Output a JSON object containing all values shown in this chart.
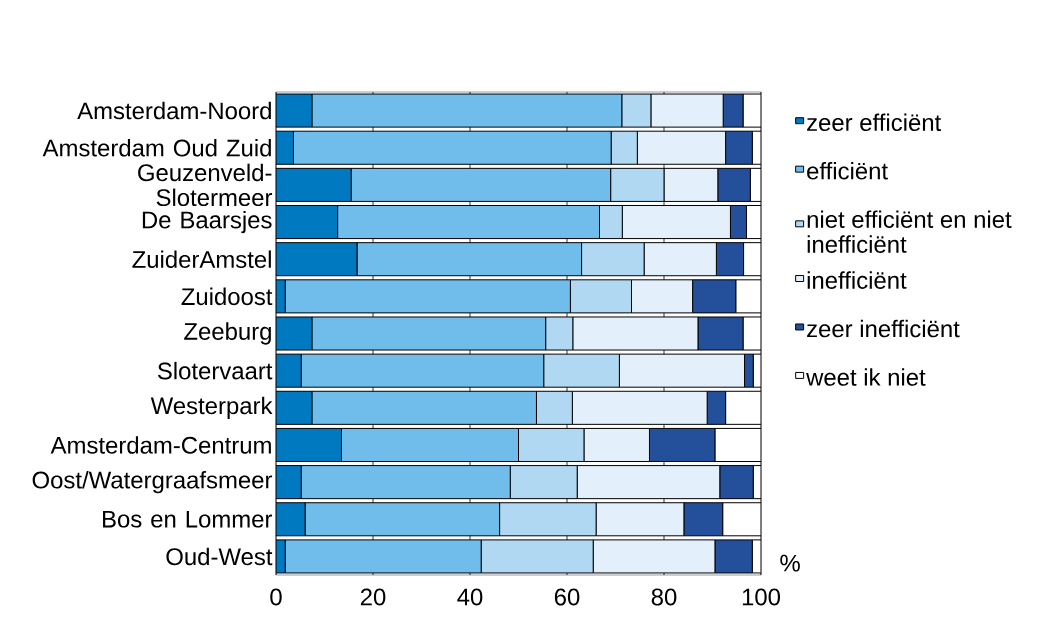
{
  "chart_data": {
    "type": "bar",
    "orientation": "horizontal",
    "stacked": true,
    "categories": [
      "Amsterdam-Noord",
      "Amsterdam Oud Zuid",
      "Geuzenveld-Slotermeer",
      "De Baarsjes",
      "ZuiderAmstel",
      "Zuidoost",
      "Zeeburg",
      "Slotervaart",
      "Westerpark",
      "Amsterdam-Centrum",
      "Oost/Watergraafsmeer",
      "Bos en Lommer",
      "Oud-West"
    ],
    "series": [
      {
        "name": "zeer efficiënt",
        "color": "#0079c1",
        "values": [
          7.4,
          3.6,
          15.5,
          12.7,
          16.7,
          1.9,
          7.4,
          5.2,
          7.4,
          13.5,
          5.2,
          6.0,
          1.9
        ]
      },
      {
        "name": "efficiënt",
        "color": "#70bdec",
        "values": [
          63.9,
          65.5,
          53.5,
          54.0,
          46.3,
          58.8,
          48.2,
          50.0,
          46.3,
          36.5,
          43.1,
          40.1,
          40.4
        ]
      },
      {
        "name": "niet efficiënt en niet inefficiënt",
        "color": "#b1d8f3",
        "values": [
          6.0,
          5.4,
          11.0,
          4.7,
          12.9,
          12.6,
          5.6,
          15.6,
          7.4,
          13.5,
          13.8,
          19.9,
          23.1
        ]
      },
      {
        "name": "inefficiënt",
        "color": "#e3f0fb",
        "values": [
          14.9,
          18.2,
          11.1,
          22.3,
          14.9,
          12.6,
          25.8,
          25.8,
          27.8,
          13.5,
          29.4,
          18.1,
          25.1
        ]
      },
      {
        "name": "zeer inefficiënt",
        "color": "#24509b",
        "values": [
          4.1,
          5.5,
          6.7,
          3.3,
          5.6,
          8.9,
          9.3,
          1.8,
          3.8,
          13.5,
          6.9,
          8.0,
          7.7
        ]
      },
      {
        "name": "weet ik niet",
        "color": "#ffffff",
        "values": [
          3.7,
          1.8,
          2.2,
          3.0,
          3.6,
          5.2,
          3.7,
          1.6,
          7.3,
          9.5,
          1.6,
          7.9,
          1.8
        ]
      }
    ],
    "xlim": [
      0,
      100
    ],
    "xticks": [
      0,
      20,
      40,
      60,
      80,
      100
    ],
    "xlabel": "%",
    "grid": "x",
    "legend": "right"
  }
}
